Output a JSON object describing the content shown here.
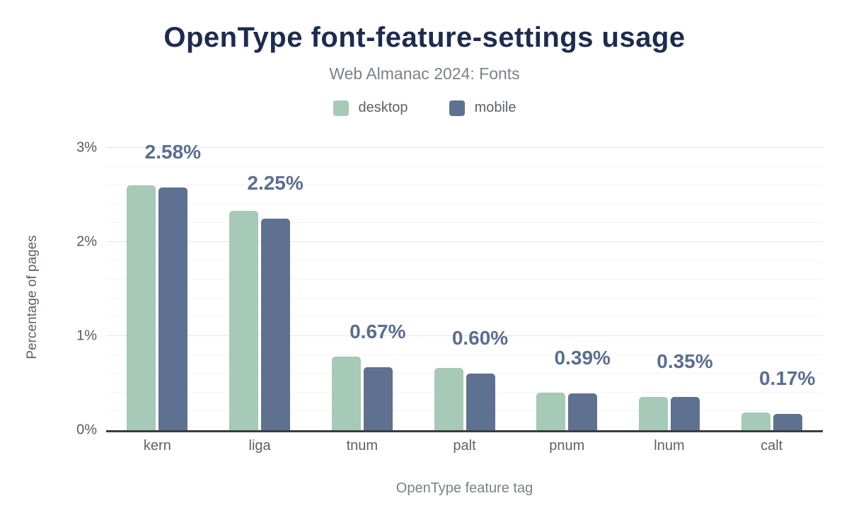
{
  "chart_data": {
    "type": "bar",
    "title": "OpenType font-feature-settings usage",
    "subtitle": "Web Almanac 2024: Fonts",
    "xlabel": "OpenType feature tag",
    "ylabel": "Percentage of pages",
    "categories": [
      "kern",
      "liga",
      "tnum",
      "palt",
      "pnum",
      "lnum",
      "calt"
    ],
    "series": [
      {
        "name": "desktop",
        "color": "#a7c9b7",
        "values": [
          2.6,
          2.33,
          0.78,
          0.66,
          0.4,
          0.35,
          0.19
        ]
      },
      {
        "name": "mobile",
        "color": "#5f7190",
        "values": [
          2.58,
          2.25,
          0.67,
          0.6,
          0.39,
          0.35,
          0.17
        ]
      }
    ],
    "bar_labels": [
      "2.58%",
      "2.25%",
      "0.67%",
      "0.60%",
      "0.39%",
      "0.35%",
      "0.17%"
    ],
    "yticks": [
      {
        "label": "0%",
        "value": 0
      },
      {
        "label": "1%",
        "value": 1
      },
      {
        "label": "2%",
        "value": 2
      },
      {
        "label": "3%",
        "value": 3
      }
    ],
    "ylim": [
      0,
      3
    ],
    "grid": {
      "minor_step": 0.2,
      "major_step": 1,
      "visible": true
    },
    "legend_position": "top",
    "colors": {
      "title": "#1d2c4e",
      "data_label": "#5b6e90",
      "axis_line": "#3a3c40",
      "grid_major": "#e4e5e8",
      "grid_minor": "#f3f4f6"
    }
  }
}
